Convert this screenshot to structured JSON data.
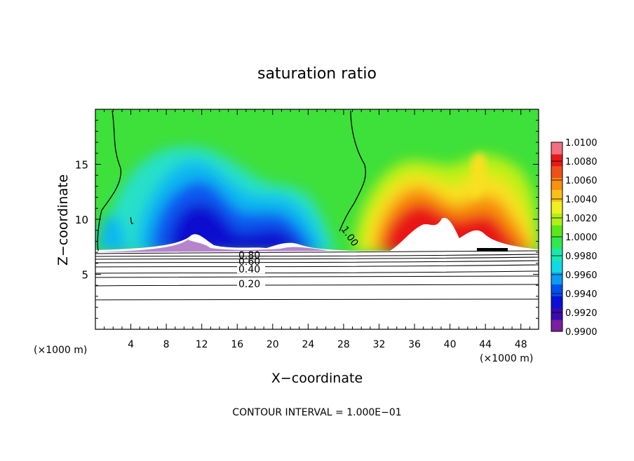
{
  "chart_data": {
    "type": "heatmap",
    "title": "saturation ratio",
    "xlabel": "X−coordinate",
    "ylabel": "Z−coordinate",
    "x_unit_left": "(×1000 m)",
    "x_unit_right": "(×1000 m)",
    "xlim": [
      0,
      50
    ],
    "ylim": [
      0,
      20
    ],
    "x_ticks": [
      4,
      8,
      12,
      16,
      20,
      24,
      28,
      32,
      36,
      40,
      44,
      48
    ],
    "y_ticks": [
      5,
      10,
      15
    ],
    "footnote": "CONTOUR INTERVAL = 1.000E−01",
    "colorbar": {
      "min": 0.99,
      "max": 1.01,
      "labels": [
        "1.0100",
        "1.0080",
        "1.0060",
        "1.0040",
        "1.0020",
        "1.0000",
        "0.9980",
        "0.9960",
        "0.9940",
        "0.9920",
        "0.9900"
      ],
      "colors": [
        "#7a1fa0",
        "#3a0ab0",
        "#0a10d8",
        "#0050f0",
        "#0a9cf2",
        "#10d8e6",
        "#18e8b0",
        "#30e850",
        "#5ae818",
        "#b0f018",
        "#f0f020",
        "#f8c018",
        "#f89010",
        "#f05018",
        "#e81818",
        "#f07080"
      ]
    },
    "contour_lines": [
      {
        "label": "0.20",
        "z": 4.3
      },
      {
        "label": "0.40",
        "z": 6.0
      },
      {
        "label": "0.60",
        "z": 6.6
      },
      {
        "label": "0.80",
        "z": 7.0
      },
      {
        "label": "1.00",
        "z": 7.2
      }
    ],
    "cold_region_x": [
      0,
      27
    ],
    "warm_region_x": [
      30,
      50
    ],
    "ground_level_z": 7.2
  }
}
